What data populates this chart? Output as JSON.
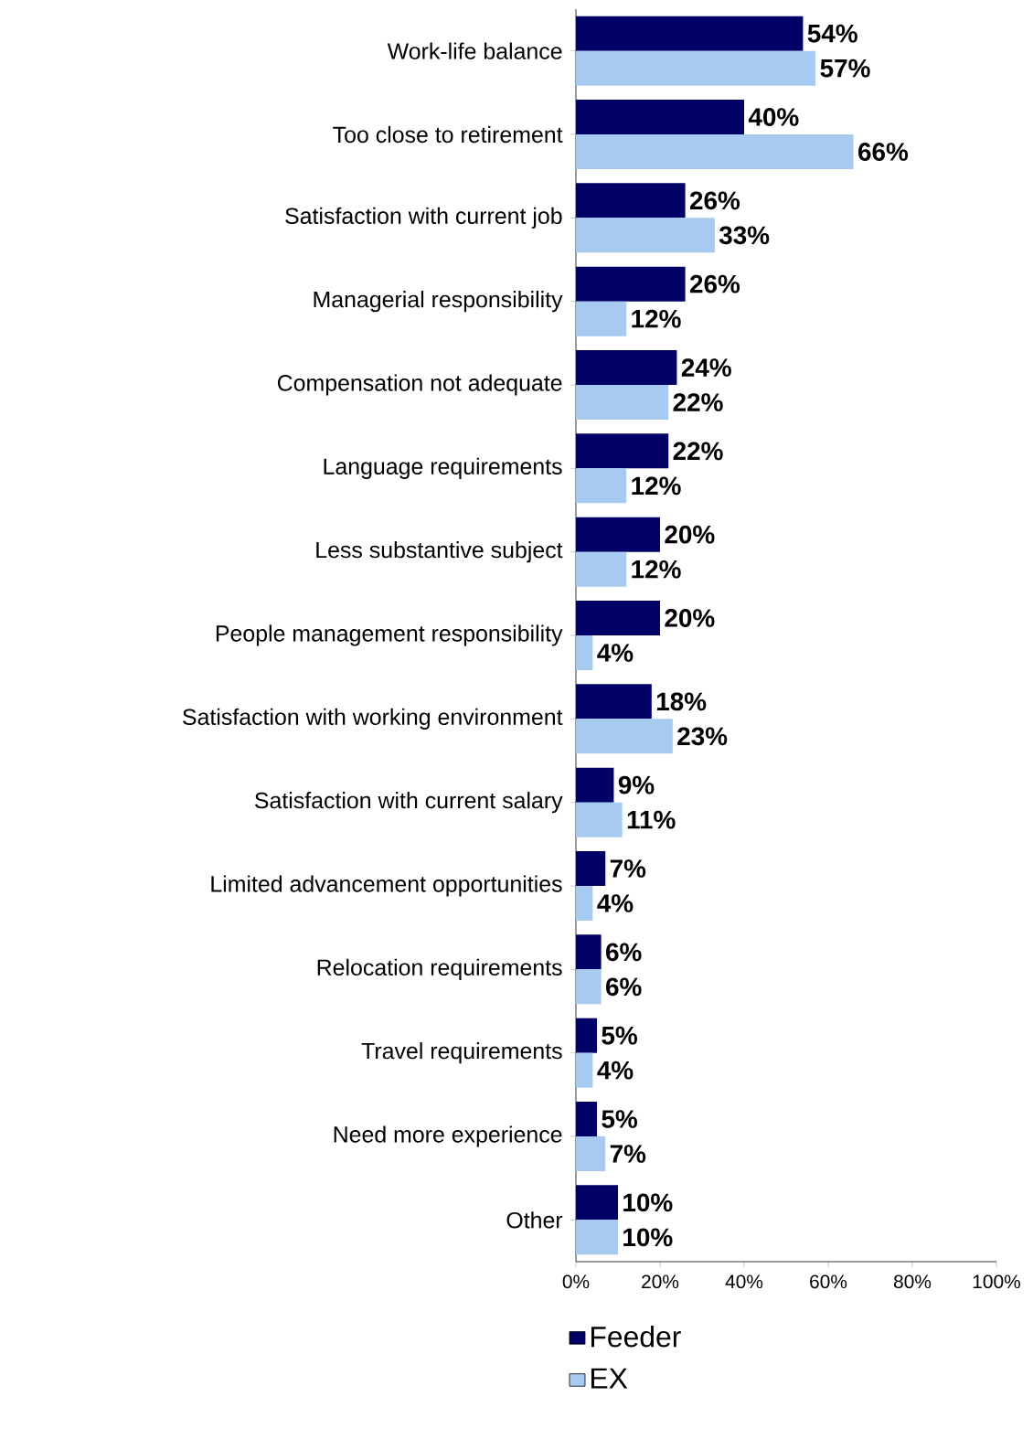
{
  "chart_data": {
    "type": "bar",
    "orientation": "horizontal",
    "categories": [
      "Work-life balance",
      "Too close to retirement",
      "Satisfaction with current job",
      "Managerial responsibility",
      "Compensation not adequate",
      "Language requirements",
      "Less substantive subject",
      "People management responsibility",
      "Satisfaction with working environment",
      "Satisfaction with current salary",
      "Limited advancement opportunities",
      "Relocation requirements",
      "Travel requirements",
      "Need more experience",
      "Other"
    ],
    "series": [
      {
        "name": "Feeder",
        "color": "#000066",
        "values": [
          54,
          40,
          26,
          26,
          24,
          22,
          20,
          20,
          18,
          9,
          7,
          6,
          5,
          5,
          10
        ],
        "value_labels": [
          "54%",
          "40%",
          "26%",
          "26%",
          "24%",
          "22%",
          "20%",
          "20%",
          "18%",
          "9%",
          "7%",
          "6%",
          "5%",
          "5%",
          "10%"
        ]
      },
      {
        "name": "EX",
        "color": "#a6caf0",
        "values": [
          57,
          66,
          33,
          12,
          22,
          12,
          12,
          4,
          23,
          11,
          4,
          6,
          4,
          7,
          10
        ],
        "value_labels": [
          "57%",
          "66%",
          "33%",
          "12%",
          "22%",
          "12%",
          "12%",
          "4%",
          "23%",
          "11%",
          "4%",
          "6%",
          "4%",
          "7%",
          "10%"
        ]
      }
    ],
    "xlim": [
      0,
      100
    ],
    "xticks": [
      {
        "value": 0,
        "label": "0%"
      },
      {
        "value": 20,
        "label": "20%"
      },
      {
        "value": 40,
        "label": "40%"
      },
      {
        "value": 60,
        "label": "60%"
      },
      {
        "value": 80,
        "label": "80%"
      },
      {
        "value": 100,
        "label": "100%"
      }
    ],
    "grid": false,
    "legend": "bottom"
  }
}
